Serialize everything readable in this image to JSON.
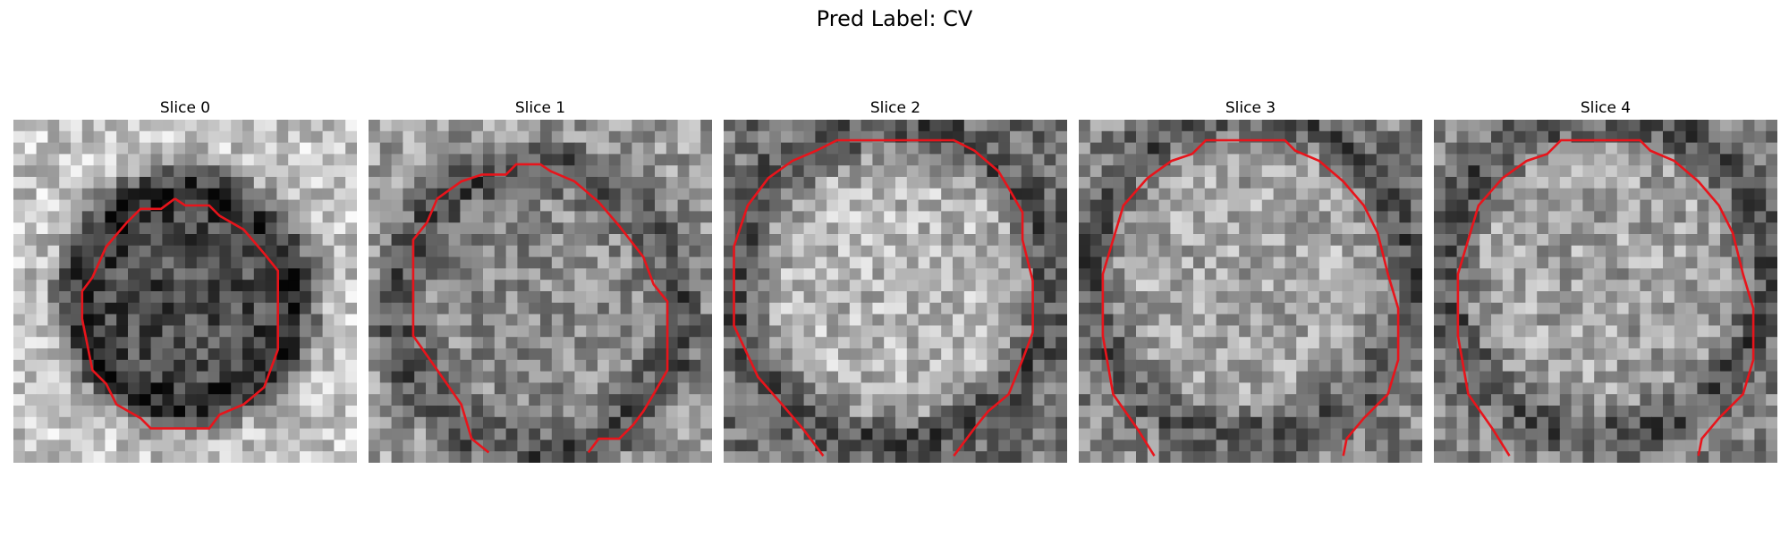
{
  "figure": {
    "title": "Pred Label: CV",
    "contour_color": "#e8141b",
    "panels": [
      {
        "label": "Slice 0",
        "seed": 11,
        "center_value": 0.3,
        "surround_value": 0.78,
        "blob_radius": 0.34,
        "blob_cx": 0.5,
        "blob_cy": 0.52,
        "contour": [
          [
            0.47,
            0.23
          ],
          [
            0.5,
            0.25
          ],
          [
            0.57,
            0.25
          ],
          [
            0.6,
            0.28
          ],
          [
            0.67,
            0.32
          ],
          [
            0.73,
            0.39
          ],
          [
            0.77,
            0.44
          ],
          [
            0.77,
            0.67
          ],
          [
            0.73,
            0.78
          ],
          [
            0.67,
            0.83
          ],
          [
            0.6,
            0.86
          ],
          [
            0.57,
            0.9
          ],
          [
            0.4,
            0.9
          ],
          [
            0.37,
            0.87
          ],
          [
            0.3,
            0.83
          ],
          [
            0.27,
            0.77
          ],
          [
            0.23,
            0.73
          ],
          [
            0.2,
            0.58
          ],
          [
            0.2,
            0.5
          ],
          [
            0.23,
            0.46
          ],
          [
            0.27,
            0.37
          ],
          [
            0.33,
            0.3
          ],
          [
            0.37,
            0.26
          ],
          [
            0.43,
            0.26
          ],
          [
            0.47,
            0.23
          ]
        ]
      },
      {
        "label": "Slice 1",
        "seed": 29,
        "center_value": 0.55,
        "surround_value": 0.62,
        "blob_radius": 0.42,
        "blob_cx": 0.5,
        "blob_cy": 0.55,
        "contour": [
          [
            0.35,
            0.97
          ],
          [
            0.3,
            0.93
          ],
          [
            0.27,
            0.83
          ],
          [
            0.2,
            0.73
          ],
          [
            0.13,
            0.63
          ],
          [
            0.13,
            0.35
          ],
          [
            0.17,
            0.3
          ],
          [
            0.2,
            0.23
          ],
          [
            0.27,
            0.18
          ],
          [
            0.33,
            0.16
          ],
          [
            0.4,
            0.16
          ],
          [
            0.43,
            0.13
          ],
          [
            0.5,
            0.13
          ],
          [
            0.53,
            0.15
          ],
          [
            0.6,
            0.18
          ],
          [
            0.67,
            0.24
          ],
          [
            0.73,
            0.31
          ],
          [
            0.8,
            0.4
          ],
          [
            0.83,
            0.48
          ],
          [
            0.87,
            0.53
          ],
          [
            0.87,
            0.73
          ],
          [
            0.83,
            0.8
          ],
          [
            0.8,
            0.85
          ],
          [
            0.77,
            0.89
          ],
          [
            0.73,
            0.93
          ],
          [
            0.67,
            0.93
          ],
          [
            0.64,
            0.97
          ]
        ]
      },
      {
        "label": "Slice 2",
        "seed": 47,
        "center_value": 0.72,
        "surround_value": 0.45,
        "blob_radius": 0.44,
        "blob_cx": 0.5,
        "blob_cy": 0.48,
        "contour": [
          [
            0.29,
            0.98
          ],
          [
            0.23,
            0.9
          ],
          [
            0.17,
            0.83
          ],
          [
            0.1,
            0.75
          ],
          [
            0.03,
            0.6
          ],
          [
            0.03,
            0.37
          ],
          [
            0.07,
            0.25
          ],
          [
            0.13,
            0.17
          ],
          [
            0.2,
            0.12
          ],
          [
            0.27,
            0.09
          ],
          [
            0.33,
            0.06
          ],
          [
            0.67,
            0.06
          ],
          [
            0.73,
            0.09
          ],
          [
            0.8,
            0.15
          ],
          [
            0.83,
            0.2
          ],
          [
            0.87,
            0.27
          ],
          [
            0.87,
            0.35
          ],
          [
            0.9,
            0.47
          ],
          [
            0.9,
            0.62
          ],
          [
            0.87,
            0.7
          ],
          [
            0.83,
            0.8
          ],
          [
            0.77,
            0.85
          ],
          [
            0.73,
            0.9
          ],
          [
            0.67,
            0.98
          ]
        ]
      },
      {
        "label": "Slice 3",
        "seed": 63,
        "center_value": 0.66,
        "surround_value": 0.52,
        "blob_radius": 0.46,
        "blob_cx": 0.5,
        "blob_cy": 0.45,
        "contour": [
          [
            0.22,
            0.98
          ],
          [
            0.17,
            0.9
          ],
          [
            0.1,
            0.8
          ],
          [
            0.07,
            0.63
          ],
          [
            0.07,
            0.45
          ],
          [
            0.1,
            0.35
          ],
          [
            0.13,
            0.25
          ],
          [
            0.2,
            0.17
          ],
          [
            0.27,
            0.12
          ],
          [
            0.33,
            0.1
          ],
          [
            0.37,
            0.06
          ],
          [
            0.6,
            0.06
          ],
          [
            0.63,
            0.09
          ],
          [
            0.7,
            0.12
          ],
          [
            0.77,
            0.18
          ],
          [
            0.83,
            0.25
          ],
          [
            0.87,
            0.33
          ],
          [
            0.9,
            0.45
          ],
          [
            0.93,
            0.55
          ],
          [
            0.93,
            0.7
          ],
          [
            0.9,
            0.8
          ],
          [
            0.83,
            0.87
          ],
          [
            0.78,
            0.93
          ],
          [
            0.77,
            0.98
          ]
        ]
      },
      {
        "label": "Slice 4",
        "seed": 83,
        "center_value": 0.64,
        "surround_value": 0.52,
        "blob_radius": 0.46,
        "blob_cx": 0.5,
        "blob_cy": 0.45,
        "contour": [
          [
            0.22,
            0.98
          ],
          [
            0.17,
            0.9
          ],
          [
            0.1,
            0.8
          ],
          [
            0.07,
            0.63
          ],
          [
            0.07,
            0.45
          ],
          [
            0.1,
            0.35
          ],
          [
            0.13,
            0.25
          ],
          [
            0.2,
            0.17
          ],
          [
            0.27,
            0.12
          ],
          [
            0.33,
            0.1
          ],
          [
            0.37,
            0.06
          ],
          [
            0.6,
            0.06
          ],
          [
            0.63,
            0.09
          ],
          [
            0.7,
            0.12
          ],
          [
            0.77,
            0.18
          ],
          [
            0.83,
            0.25
          ],
          [
            0.87,
            0.33
          ],
          [
            0.9,
            0.45
          ],
          [
            0.93,
            0.55
          ],
          [
            0.93,
            0.7
          ],
          [
            0.9,
            0.8
          ],
          [
            0.83,
            0.87
          ],
          [
            0.78,
            0.93
          ],
          [
            0.77,
            0.98
          ]
        ]
      }
    ]
  }
}
